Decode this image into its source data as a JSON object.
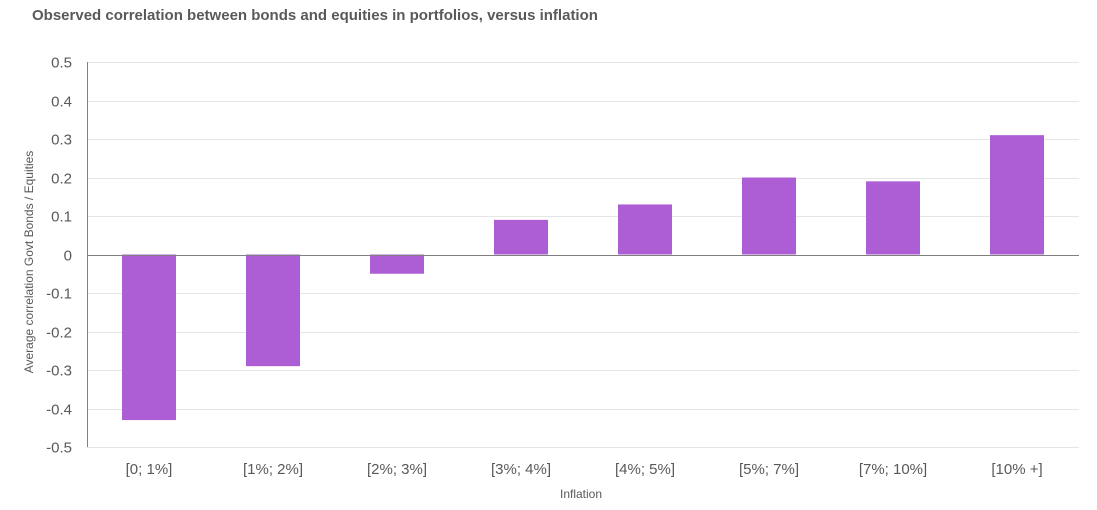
{
  "chart_data": {
    "type": "bar",
    "title": "Observed correlation between bonds and equities in portfolios, versus inflation",
    "xlabel": "Inflation",
    "ylabel": "Average correlation Govt Bonds / Equities",
    "categories": [
      "[0; 1%]",
      "[1%; 2%]",
      "[2%; 3%]",
      "[3%; 4%]",
      "[4%; 5%]",
      "[5%; 7%]",
      "[7%; 10%]",
      "[10% +]"
    ],
    "values": [
      -0.43,
      -0.29,
      -0.05,
      0.09,
      0.13,
      0.2,
      0.19,
      0.31
    ],
    "ylim": [
      -0.5,
      0.5
    ],
    "yticks": [
      0.5,
      0.4,
      0.3,
      0.2,
      0.1,
      0,
      -0.1,
      -0.2,
      -0.3,
      -0.4,
      -0.5
    ],
    "ytick_labels": [
      "0.5",
      "0.4",
      "0.3",
      "0.2",
      "0.1",
      "0",
      "-0.1",
      "-0.2",
      "-0.3",
      "-0.4",
      "-0.5"
    ],
    "grid": true,
    "bar_color": "#AD5ED5",
    "grid_color": "#E6E6E6",
    "axis_color": "#808080",
    "text_color": "#595959"
  }
}
